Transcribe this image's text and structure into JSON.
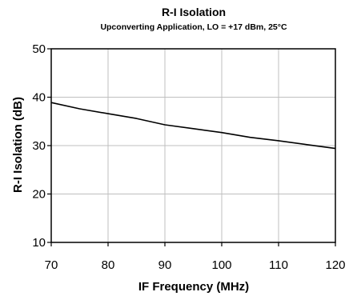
{
  "chart_data": {
    "type": "line",
    "title": "R-I Isolation",
    "subtitle": "Upconverting Application, LO = +17 dBm, 25°C",
    "xlabel": "IF Frequency (MHz)",
    "ylabel": "R-I Isolation (dB)",
    "xlim": [
      70,
      120
    ],
    "ylim": [
      10,
      50
    ],
    "xticks": [
      70,
      80,
      90,
      100,
      110,
      120
    ],
    "yticks": [
      10,
      20,
      30,
      40,
      50
    ],
    "grid": true,
    "series": [
      {
        "name": "",
        "color": "#000000",
        "x": [
          70,
          75,
          80,
          85,
          90,
          95,
          100,
          105,
          110,
          115,
          120
        ],
        "y": [
          38.9,
          37.6,
          36.6,
          35.6,
          34.3,
          33.5,
          32.7,
          31.7,
          31.0,
          30.2,
          29.4
        ]
      }
    ]
  }
}
